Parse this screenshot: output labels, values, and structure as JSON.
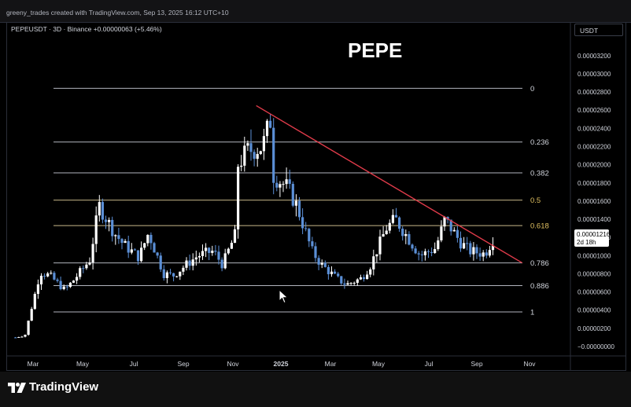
{
  "header": {
    "credit": "greeny_trades created with TradingView.com, Sep 13, 2025 16:12 UTC+10"
  },
  "legend": {
    "symbol_line": "PEPEUSDT · 3D · Binance  +0.00000063 (+5.46%)"
  },
  "currency": "USDT",
  "footer": {
    "brand": "TradingView"
  },
  "price_label": {
    "value": "0.00001216",
    "countdown": "2d 18h"
  },
  "colors": {
    "background": "#000000",
    "candle_up": "#ffffff",
    "candle_down": "#5b8fd6",
    "trendline": "#e03b4a",
    "fib_line": "#b2b5be",
    "fib_golden": "#c9b98a",
    "text": "#d1d4dc"
  },
  "chart_data": {
    "type": "candlestick",
    "title": "PEPE",
    "y_axis": {
      "ticks": [
        "0.00003200",
        "0.00003000",
        "0.00002800",
        "0.00002600",
        "0.00002400",
        "0.00002200",
        "0.00002000",
        "0.00001800",
        "0.00001600",
        "0.00001400",
        "0.00001200",
        "0.00001000",
        "0.00000800",
        "0.00000600",
        "0.00000400",
        "0.00000200",
        "−0.00000000"
      ],
      "ylim": [
        0.0,
        3.25e-05
      ]
    },
    "x_axis": {
      "ticks": [
        "Mar",
        "May",
        "Jul",
        "Sep",
        "Nov",
        "2025",
        "Mar",
        "May",
        "Jul",
        "Sep",
        "Nov"
      ]
    },
    "fib_levels": [
      {
        "label": "0",
        "price": 2.84e-05
      },
      {
        "label": "0.236",
        "price": 2.25e-05
      },
      {
        "label": "0.382",
        "price": 1.91e-05
      },
      {
        "label": "0.5",
        "price": 1.61e-05
      },
      {
        "label": "0.618",
        "price": 1.33e-05
      },
      {
        "label": "0.786",
        "price": 9.2e-06
      },
      {
        "label": "0.886",
        "price": 6.7e-06
      },
      {
        "label": "1",
        "price": 3.8e-06
      }
    ],
    "trendline": {
      "start": {
        "date": "Dec 2024",
        "price": 2.65e-05
      },
      "end": {
        "date": "Oct 2025",
        "price": 9.2e-06
      }
    },
    "price_path": [
      {
        "t": "Feb 2024",
        "price": 1e-06
      },
      {
        "t": "Feb 2024",
        "price": 1.2e-06
      },
      {
        "t": "Mar 2024",
        "price": 8.2e-06
      },
      {
        "t": "Mar 2024",
        "price": 7.8e-06
      },
      {
        "t": "Apr 2024",
        "price": 6.2e-06
      },
      {
        "t": "Apr 2024",
        "price": 7.4e-06
      },
      {
        "t": "May 2024",
        "price": 9.5e-06
      },
      {
        "t": "May 2024",
        "price": 1.55e-05
      },
      {
        "t": "Jun 2024",
        "price": 1.25e-05
      },
      {
        "t": "Jun 2024",
        "price": 1.12e-05
      },
      {
        "t": "Jul 2024",
        "price": 9.8e-06
      },
      {
        "t": "Jul 2024",
        "price": 1.25e-05
      },
      {
        "t": "Aug 2024",
        "price": 8e-06
      },
      {
        "t": "Aug 2024",
        "price": 7.8e-06
      },
      {
        "t": "Sep 2024",
        "price": 9.2e-06
      },
      {
        "t": "Sep 2024",
        "price": 1e-05
      },
      {
        "t": "Oct 2024",
        "price": 1.05e-05
      },
      {
        "t": "Oct 2024",
        "price": 9e-06
      },
      {
        "t": "Nov 2024",
        "price": 1.3e-05
      },
      {
        "t": "Nov 2024",
        "price": 2.15e-05
      },
      {
        "t": "Nov 2024",
        "price": 2e-05
      },
      {
        "t": "Dec 2024",
        "price": 2.55e-05
      },
      {
        "t": "Dec 2024",
        "price": 2.2e-05
      },
      {
        "t": "Dec 2024",
        "price": 1.9e-05
      },
      {
        "t": "Jan 2025",
        "price": 1.75e-05
      },
      {
        "t": "Jan 2025",
        "price": 1.55e-05
      },
      {
        "t": "Feb 2025",
        "price": 1.05e-05
      },
      {
        "t": "Feb 2025",
        "price": 9e-06
      },
      {
        "t": "Mar 2025",
        "price": 7.5e-06
      },
      {
        "t": "Mar 2025",
        "price": 6.8e-06
      },
      {
        "t": "Apr 2025",
        "price": 7.5e-06
      },
      {
        "t": "Apr 2025",
        "price": 9e-06
      },
      {
        "t": "May 2025",
        "price": 1.3e-05
      },
      {
        "t": "May 2025",
        "price": 1.4e-05
      },
      {
        "t": "Jun 2025",
        "price": 1.15e-05
      },
      {
        "t": "Jun 2025",
        "price": 1e-05
      },
      {
        "t": "Jul 2025",
        "price": 1.08e-05
      },
      {
        "t": "Jul 2025",
        "price": 1.4e-05
      },
      {
        "t": "Aug 2025",
        "price": 1.15e-05
      },
      {
        "t": "Aug 2025",
        "price": 1.05e-05
      },
      {
        "t": "Sep 2025",
        "price": 1.02e-05
      },
      {
        "t": "Sep 2025",
        "price": 1.21e-05
      }
    ]
  }
}
